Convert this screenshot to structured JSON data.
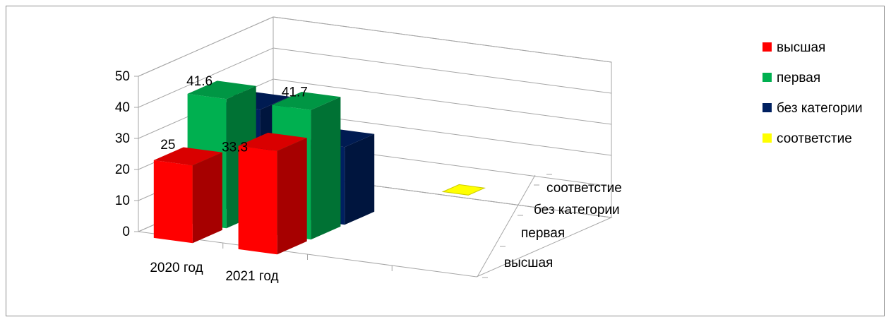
{
  "chart_data": {
    "type": "bar",
    "subtype": "3d-column",
    "categories": [
      "2020 год",
      "2021 год"
    ],
    "series": [
      {
        "name": "высшая",
        "values": [
          25,
          33.3
        ],
        "color": "#ff0000"
      },
      {
        "name": "первая",
        "values": [
          41.6,
          41.7
        ],
        "color": "#00b050"
      },
      {
        "name": "без категории",
        "values": [
          33.4,
          25
        ],
        "color": "#002060"
      },
      {
        "name": "соответстие",
        "values": [
          0,
          0
        ],
        "color": "#ffff00"
      }
    ],
    "ylim": [
      0,
      50
    ],
    "yticks": [
      "0",
      "10",
      "20",
      "30",
      "40",
      "50"
    ],
    "grid": true,
    "legend_position": "right"
  }
}
